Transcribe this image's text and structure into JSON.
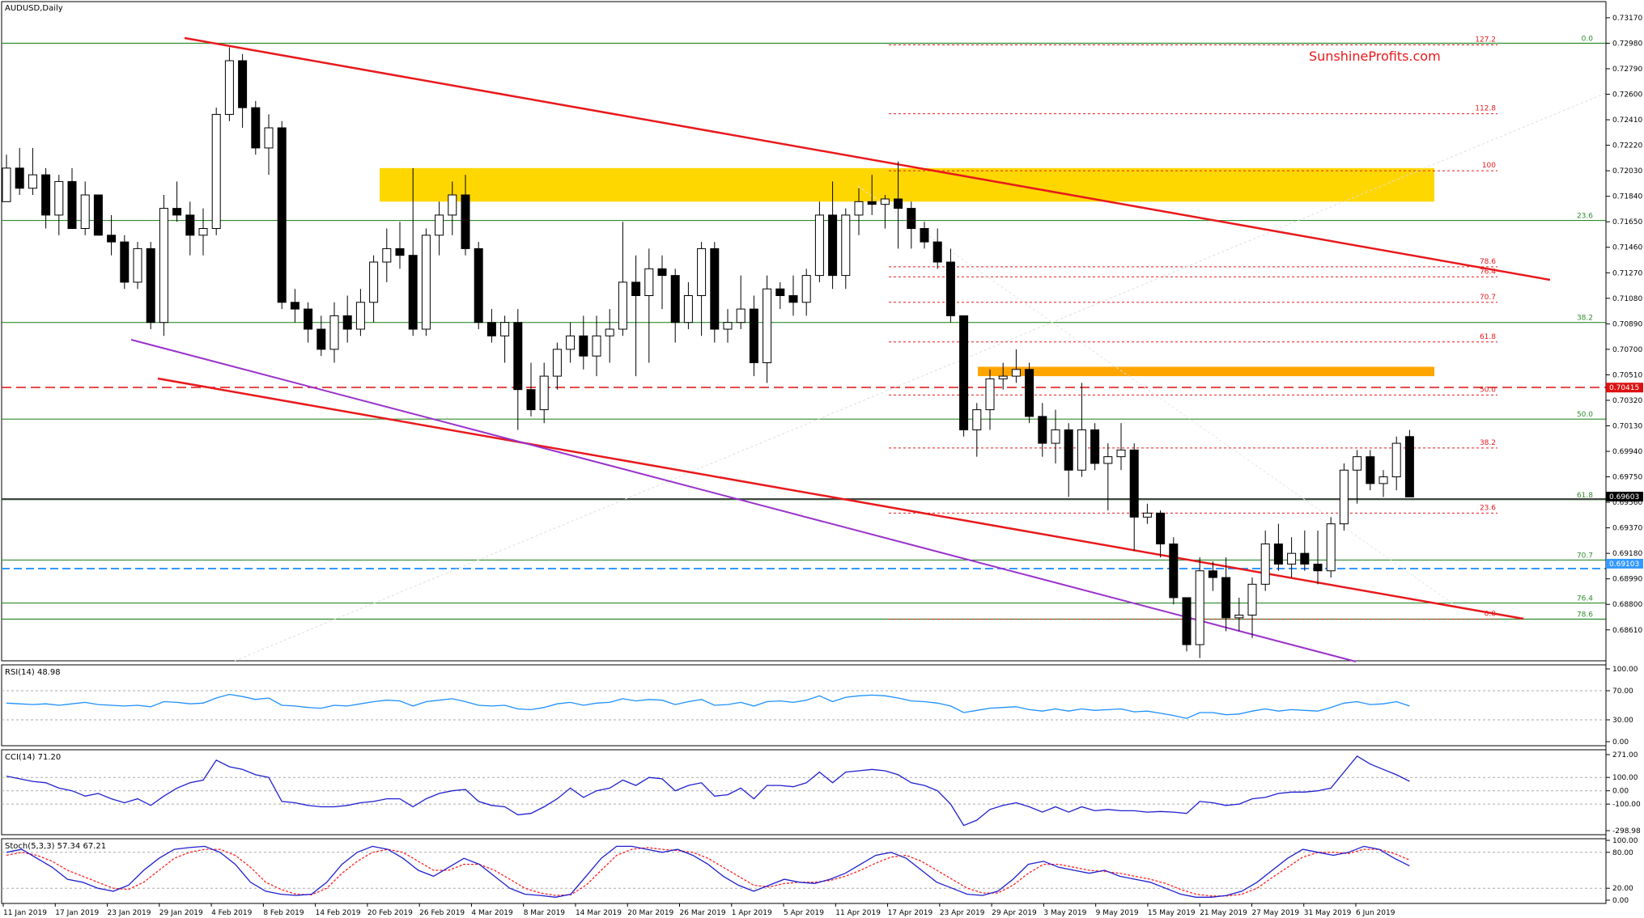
{
  "chart_data": {
    "type": "candlestick",
    "symbol": "AUDUSD,Daily",
    "watermark": "SunshineProfits.com",
    "price_axis": {
      "ylim": [
        0.6847,
        0.7326
      ],
      "ticks": [
        "0.73170",
        "0.72980",
        "0.72790",
        "0.72600",
        "0.72410",
        "0.72220",
        "0.72030",
        "0.71840",
        "0.71650",
        "0.71460",
        "0.71270",
        "0.71080",
        "0.70890",
        "0.70700",
        "0.70510",
        "0.70320",
        "0.70130",
        "0.69940",
        "0.69750",
        "0.69560",
        "0.69370",
        "0.69180",
        "0.68990",
        "0.68800",
        "0.68610"
      ],
      "current_price_label": "0.69603",
      "level_labels": [
        {
          "label": "0.70415",
          "value": 0.70415,
          "color": "#dd1111"
        },
        {
          "label": "0.69103",
          "value": 0.69103,
          "color": "#3399ff"
        }
      ]
    },
    "date_axis": [
      "11 Jan 2019",
      "17 Jan 2019",
      "23 Jan 2019",
      "29 Jan 2019",
      "4 Feb 2019",
      "8 Feb 2019",
      "14 Feb 2019",
      "20 Feb 2019",
      "26 Feb 2019",
      "4 Mar 2019",
      "8 Mar 2019",
      "14 Mar 2019",
      "20 Mar 2019",
      "26 Mar 2019",
      "1 Apr 2019",
      "5 Apr 2019",
      "11 Apr 2019",
      "17 Apr 2019",
      "23 Apr 2019",
      "29 Apr 2019",
      "3 May 2019",
      "9 May 2019",
      "15 May 2019",
      "21 May 2019",
      "27 May 2019",
      "31 May 2019",
      "6 Jun 2019"
    ],
    "candles": [
      [
        0.718,
        0.7215,
        0.718,
        0.7205
      ],
      [
        0.7205,
        0.722,
        0.7185,
        0.719
      ],
      [
        0.719,
        0.722,
        0.7185,
        0.72
      ],
      [
        0.72,
        0.7205,
        0.716,
        0.717
      ],
      [
        0.717,
        0.72,
        0.7155,
        0.7195
      ],
      [
        0.7195,
        0.7205,
        0.716,
        0.716
      ],
      [
        0.716,
        0.7195,
        0.7155,
        0.7185
      ],
      [
        0.7185,
        0.7185,
        0.7155,
        0.7155
      ],
      [
        0.7155,
        0.717,
        0.714,
        0.715
      ],
      [
        0.715,
        0.7155,
        0.7115,
        0.712
      ],
      [
        0.712,
        0.715,
        0.7115,
        0.7145
      ],
      [
        0.7145,
        0.715,
        0.7085,
        0.709
      ],
      [
        0.709,
        0.7185,
        0.708,
        0.7175
      ],
      [
        0.7175,
        0.7195,
        0.7165,
        0.717
      ],
      [
        0.717,
        0.718,
        0.714,
        0.7155
      ],
      [
        0.7155,
        0.7175,
        0.714,
        0.716
      ],
      [
        0.716,
        0.725,
        0.7155,
        0.7245
      ],
      [
        0.7245,
        0.7295,
        0.724,
        0.7285
      ],
      [
        0.7285,
        0.729,
        0.7235,
        0.725
      ],
      [
        0.725,
        0.7255,
        0.7215,
        0.722
      ],
      [
        0.722,
        0.7245,
        0.72,
        0.7235
      ],
      [
        0.7235,
        0.724,
        0.71,
        0.7105
      ],
      [
        0.7105,
        0.7115,
        0.709,
        0.71
      ],
      [
        0.71,
        0.7105,
        0.7075,
        0.7085
      ],
      [
        0.7085,
        0.7095,
        0.7065,
        0.707
      ],
      [
        0.707,
        0.7105,
        0.706,
        0.7095
      ],
      [
        0.7095,
        0.711,
        0.7075,
        0.7085
      ],
      [
        0.7085,
        0.7115,
        0.708,
        0.7105
      ],
      [
        0.7105,
        0.714,
        0.709,
        0.7135
      ],
      [
        0.7135,
        0.716,
        0.712,
        0.7145
      ],
      [
        0.7145,
        0.7165,
        0.713,
        0.714
      ],
      [
        0.714,
        0.7205,
        0.708,
        0.7085
      ],
      [
        0.7085,
        0.716,
        0.708,
        0.7155
      ],
      [
        0.7155,
        0.718,
        0.714,
        0.717
      ],
      [
        0.717,
        0.7195,
        0.7155,
        0.7185
      ],
      [
        0.7185,
        0.72,
        0.714,
        0.7145
      ],
      [
        0.7145,
        0.715,
        0.7085,
        0.709
      ],
      [
        0.709,
        0.71,
        0.7075,
        0.708
      ],
      [
        0.708,
        0.7095,
        0.706,
        0.709
      ],
      [
        0.709,
        0.71,
        0.701,
        0.704
      ],
      [
        0.704,
        0.706,
        0.702,
        0.7025
      ],
      [
        0.7025,
        0.706,
        0.7015,
        0.705
      ],
      [
        0.705,
        0.7075,
        0.704,
        0.707
      ],
      [
        0.707,
        0.709,
        0.706,
        0.708
      ],
      [
        0.708,
        0.7095,
        0.7055,
        0.7065
      ],
      [
        0.7065,
        0.7095,
        0.705,
        0.708
      ],
      [
        0.708,
        0.71,
        0.706,
        0.7085
      ],
      [
        0.7085,
        0.7165,
        0.708,
        0.712
      ],
      [
        0.712,
        0.714,
        0.705,
        0.711
      ],
      [
        0.711,
        0.7145,
        0.706,
        0.713
      ],
      [
        0.713,
        0.714,
        0.71,
        0.7125
      ],
      [
        0.7125,
        0.713,
        0.7075,
        0.709
      ],
      [
        0.709,
        0.712,
        0.7085,
        0.711
      ],
      [
        0.711,
        0.715,
        0.708,
        0.7145
      ],
      [
        0.7145,
        0.715,
        0.7075,
        0.7085
      ],
      [
        0.7085,
        0.71,
        0.7075,
        0.709
      ],
      [
        0.709,
        0.7125,
        0.7085,
        0.71
      ],
      [
        0.71,
        0.711,
        0.705,
        0.706
      ],
      [
        0.706,
        0.7125,
        0.7045,
        0.7115
      ],
      [
        0.7115,
        0.712,
        0.71,
        0.711
      ],
      [
        0.711,
        0.7125,
        0.7095,
        0.7105
      ],
      [
        0.7105,
        0.713,
        0.7095,
        0.7125
      ],
      [
        0.7125,
        0.718,
        0.712,
        0.717
      ],
      [
        0.717,
        0.7195,
        0.7115,
        0.7125
      ],
      [
        0.7125,
        0.7175,
        0.7115,
        0.717
      ],
      [
        0.717,
        0.719,
        0.7155,
        0.718
      ],
      [
        0.718,
        0.72,
        0.717,
        0.7178
      ],
      [
        0.7178,
        0.7185,
        0.716,
        0.7182
      ],
      [
        0.7182,
        0.721,
        0.7145,
        0.7175
      ],
      [
        0.7175,
        0.718,
        0.7145,
        0.716
      ],
      [
        0.716,
        0.7165,
        0.7145,
        0.715
      ],
      [
        0.715,
        0.716,
        0.713,
        0.7135
      ],
      [
        0.7135,
        0.7145,
        0.709,
        0.7095
      ],
      [
        0.7095,
        0.7095,
        0.7005,
        0.701
      ],
      [
        0.701,
        0.703,
        0.699,
        0.7025
      ],
      [
        0.7025,
        0.7055,
        0.701,
        0.7048
      ],
      [
        0.7048,
        0.706,
        0.704,
        0.705
      ],
      [
        0.705,
        0.707,
        0.7045,
        0.7055
      ],
      [
        0.7055,
        0.706,
        0.7015,
        0.702
      ],
      [
        0.702,
        0.703,
        0.699,
        0.7
      ],
      [
        0.7,
        0.7025,
        0.6985,
        0.701
      ],
      [
        0.701,
        0.7015,
        0.696,
        0.698
      ],
      [
        0.698,
        0.7045,
        0.6975,
        0.701
      ],
      [
        0.701,
        0.7015,
        0.698,
        0.6985
      ],
      [
        0.6985,
        0.7,
        0.695,
        0.699
      ],
      [
        0.699,
        0.7015,
        0.698,
        0.6995
      ],
      [
        0.6995,
        0.7,
        0.692,
        0.6945
      ],
      [
        0.6945,
        0.6955,
        0.694,
        0.6948
      ],
      [
        0.6948,
        0.695,
        0.6915,
        0.6925
      ],
      [
        0.6925,
        0.693,
        0.688,
        0.6885
      ],
      [
        0.6885,
        0.6885,
        0.6845,
        0.685
      ],
      [
        0.685,
        0.6915,
        0.684,
        0.6905
      ],
      [
        0.6905,
        0.6912,
        0.689,
        0.69
      ],
      [
        0.69,
        0.6915,
        0.686,
        0.687
      ],
      [
        0.687,
        0.6885,
        0.686,
        0.6872
      ],
      [
        0.6872,
        0.69,
        0.6855,
        0.6895
      ],
      [
        0.6895,
        0.6935,
        0.689,
        0.6925
      ],
      [
        0.6925,
        0.694,
        0.6905,
        0.691
      ],
      [
        0.691,
        0.693,
        0.69,
        0.6918
      ],
      [
        0.6918,
        0.6935,
        0.6905,
        0.691
      ],
      [
        0.691,
        0.6935,
        0.6895,
        0.6905
      ],
      [
        0.6905,
        0.6945,
        0.69,
        0.694
      ],
      [
        0.694,
        0.6985,
        0.6935,
        0.698
      ],
      [
        0.698,
        0.6995,
        0.6955,
        0.699
      ],
      [
        0.699,
        0.6995,
        0.6965,
        0.697
      ],
      [
        0.697,
        0.698,
        0.696,
        0.6975
      ],
      [
        0.6975,
        0.7005,
        0.6965,
        0.7
      ],
      [
        0.7005,
        0.701,
        0.696,
        0.696
      ]
    ],
    "fib_red": [
      {
        "label": "127.2",
        "value": 0.72968
      },
      {
        "label": "112.8",
        "value": 0.72455
      },
      {
        "label": "100",
        "value": 0.7203
      },
      {
        "label": "78.6",
        "value": 0.71315
      },
      {
        "label": "76.4",
        "value": 0.7124
      },
      {
        "label": "70.7",
        "value": 0.7105
      },
      {
        "label": "61.8",
        "value": 0.70755
      },
      {
        "label": "50.0",
        "value": 0.7036
      },
      {
        "label": "38.2",
        "value": 0.69965
      },
      {
        "label": "23.6",
        "value": 0.6948
      },
      {
        "label": "0.0",
        "value": 0.6869
      }
    ],
    "fib_green": [
      {
        "label": "0.0",
        "value": 0.7298
      },
      {
        "label": "23.6",
        "value": 0.7166
      },
      {
        "label": "38.2",
        "value": 0.709
      },
      {
        "label": "50.0",
        "value": 0.7018
      },
      {
        "label": "61.8",
        "value": 0.6958
      },
      {
        "label": "70.7",
        "value": 0.6913
      },
      {
        "label": "76.4",
        "value": 0.6881
      },
      {
        "label": "78.6",
        "value": 0.6869
      }
    ],
    "zones": [
      {
        "name": "resistance-zone-yellow",
        "color": "#ffd700",
        "from": 0.718,
        "to": 0.7205
      },
      {
        "name": "resistance-zone-orange",
        "color": "#ffa500",
        "from": 0.705,
        "to": 0.7057
      }
    ],
    "indicators": {
      "rsi": {
        "title": "RSI(14) 48.98",
        "ticks": [
          "100.00",
          "70.00",
          "30.00",
          "0.00"
        ],
        "ylim": [
          0,
          100
        ],
        "levels": [
          70,
          30
        ],
        "color": "#1e90ff",
        "values": [
          53,
          52,
          51,
          52,
          50,
          52,
          54,
          51,
          50,
          49,
          50,
          48,
          55,
          54,
          52,
          53,
          60,
          65,
          62,
          58,
          60,
          50,
          49,
          47,
          46,
          50,
          49,
          52,
          55,
          57,
          56,
          49,
          55,
          57,
          59,
          55,
          50,
          49,
          50,
          45,
          44,
          47,
          52,
          54,
          50,
          53,
          54,
          59,
          56,
          58,
          57,
          51,
          55,
          58,
          50,
          51,
          54,
          49,
          55,
          56,
          54,
          57,
          63,
          55,
          61,
          63,
          64,
          63,
          60,
          56,
          55,
          53,
          49,
          40,
          43,
          46,
          47,
          48,
          44,
          42,
          45,
          42,
          45,
          43,
          44,
          45,
          41,
          42,
          39,
          36,
          32,
          40,
          40,
          37,
          38,
          42,
          45,
          42,
          44,
          43,
          42,
          47,
          53,
          55,
          51,
          52,
          55,
          48.98
        ]
      },
      "cci": {
        "title": "CCI(14) 71.20",
        "ticks": [
          "271.00",
          "100.00",
          "0.00",
          "-100.00",
          "-298.98"
        ],
        "ylim": [
          -298.98,
          271
        ],
        "levels": [
          100,
          0,
          -100
        ],
        "color": "#1f1fcf",
        "values": [
          110,
          90,
          70,
          60,
          20,
          0,
          -40,
          -20,
          -60,
          -90,
          -60,
          -110,
          -40,
          20,
          60,
          80,
          230,
          180,
          160,
          120,
          100,
          -80,
          -90,
          -110,
          -120,
          -120,
          -110,
          -90,
          -80,
          -60,
          -60,
          -120,
          -60,
          -20,
          0,
          10,
          -80,
          -110,
          -120,
          -180,
          -170,
          -120,
          -60,
          20,
          -50,
          0,
          20,
          80,
          40,
          100,
          90,
          0,
          40,
          60,
          -40,
          -30,
          20,
          -60,
          40,
          40,
          30,
          60,
          140,
          60,
          140,
          150,
          160,
          150,
          120,
          60,
          40,
          0,
          -100,
          -260,
          -220,
          -140,
          -110,
          -90,
          -120,
          -160,
          -120,
          -160,
          -120,
          -150,
          -140,
          -150,
          -150,
          -160,
          -155,
          -160,
          -170,
          -80,
          -90,
          -110,
          -100,
          -60,
          -50,
          -20,
          -10,
          -10,
          0,
          20,
          140,
          260,
          200,
          160,
          120,
          71.2
        ]
      },
      "stoch": {
        "title": "Stoch(5,3,3) 57.34 67.21",
        "ticks": [
          "100.00",
          "80.00",
          "20.00",
          "0.00"
        ],
        "ylim": [
          0,
          100
        ],
        "levels": [
          80,
          20
        ],
        "colors": {
          "main": "#1f1fcf",
          "signal": "#ff2222"
        },
        "main": [
          80,
          85,
          70,
          55,
          35,
          30,
          20,
          15,
          25,
          50,
          70,
          85,
          88,
          90,
          80,
          60,
          30,
          15,
          10,
          8,
          10,
          30,
          60,
          80,
          90,
          85,
          70,
          50,
          40,
          55,
          70,
          60,
          40,
          20,
          10,
          8,
          5,
          10,
          40,
          70,
          90,
          90,
          85,
          80,
          85,
          75,
          60,
          40,
          25,
          15,
          25,
          35,
          30,
          28,
          35,
          45,
          60,
          75,
          80,
          70,
          50,
          30,
          20,
          10,
          8,
          15,
          35,
          60,
          65,
          55,
          50,
          45,
          50,
          40,
          35,
          30,
          20,
          10,
          5,
          5,
          8,
          15,
          30,
          50,
          70,
          85,
          80,
          75,
          80,
          90,
          85,
          70,
          57.34
        ],
        "signal": [
          75,
          80,
          75,
          65,
          50,
          40,
          30,
          20,
          18,
          30,
          50,
          70,
          80,
          85,
          85,
          75,
          55,
          30,
          18,
          10,
          9,
          20,
          45,
          65,
          80,
          85,
          80,
          65,
          50,
          50,
          60,
          60,
          50,
          35,
          20,
          12,
          8,
          9,
          25,
          50,
          75,
          85,
          88,
          85,
          83,
          80,
          70,
          55,
          40,
          25,
          22,
          28,
          30,
          30,
          33,
          40,
          50,
          62,
          72,
          75,
          65,
          50,
          35,
          20,
          12,
          12,
          25,
          45,
          60,
          60,
          55,
          50,
          48,
          45,
          40,
          35,
          28,
          18,
          10,
          7,
          7,
          10,
          20,
          38,
          55,
          72,
          80,
          80,
          78,
          85,
          85,
          78,
          67.21
        ]
      }
    }
  }
}
